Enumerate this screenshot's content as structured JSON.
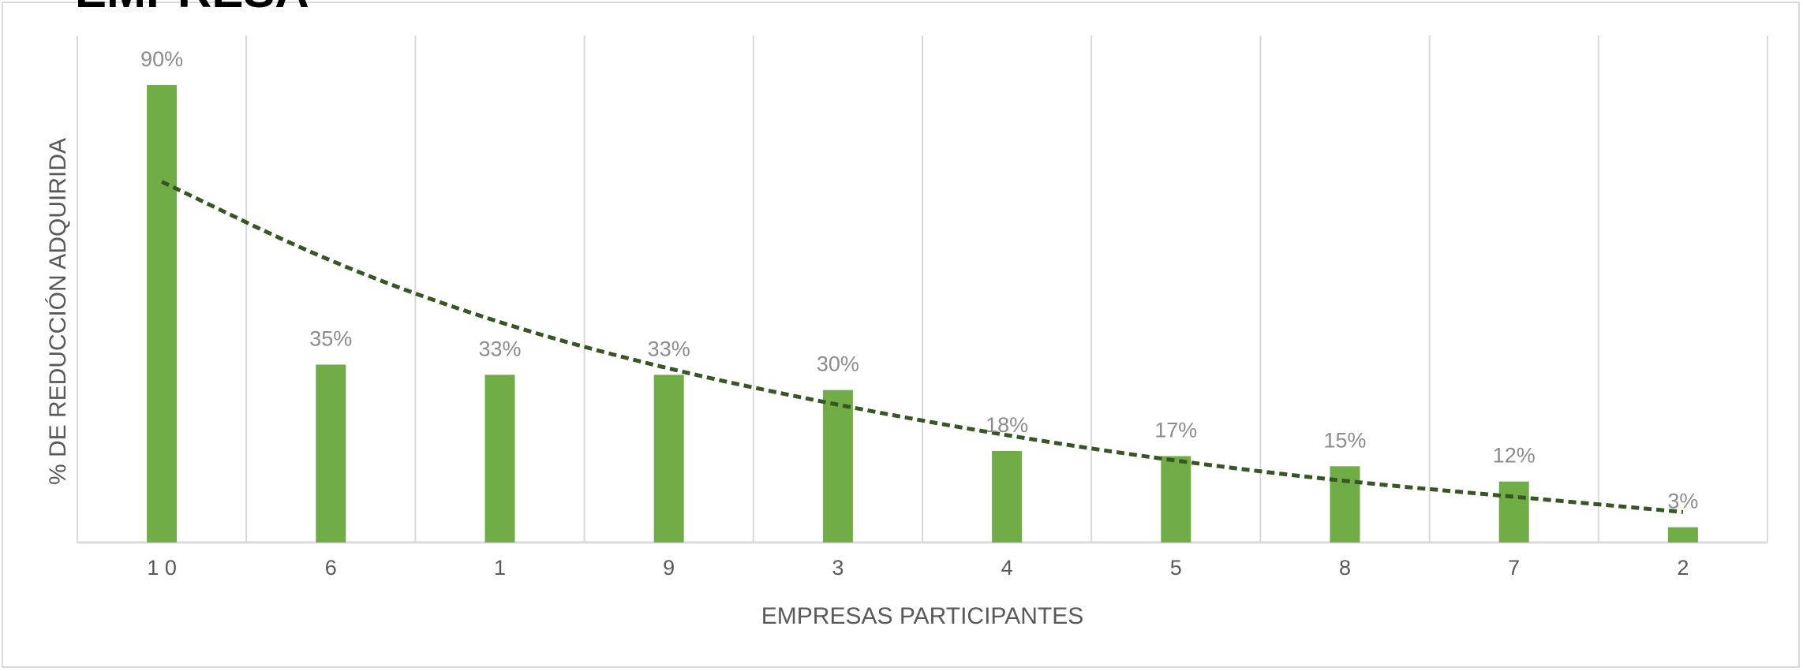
{
  "header": {
    "title_fragment": "EMPRESA"
  },
  "chart_data": {
    "type": "bar",
    "title": "",
    "xlabel": "EMPRESAS PARTICIPANTES",
    "ylabel": "% DE REDUCCIÓN ADQUIRIDA",
    "categories": [
      "1 0",
      "6",
      "1",
      "9",
      "3",
      "4",
      "5",
      "8",
      "7",
      "2"
    ],
    "values": [
      90,
      35,
      33,
      33,
      30,
      18,
      17,
      15,
      12,
      3
    ],
    "data_labels": [
      "90%",
      "35%",
      "33%",
      "33%",
      "30%",
      "18%",
      "17%",
      "15%",
      "12%",
      "3%"
    ],
    "ylim": [
      0,
      100
    ],
    "grid": "vertical",
    "legend": "none",
    "trendline": {
      "type": "exponential",
      "style": "dashed",
      "values": [
        71,
        55,
        43,
        34,
        27,
        21,
        16,
        12,
        9,
        6
      ]
    },
    "colors": {
      "bar": "#70ad47",
      "trend": "#375623",
      "grid": "#d9d9d9",
      "axis": "#d9d9d9"
    }
  }
}
